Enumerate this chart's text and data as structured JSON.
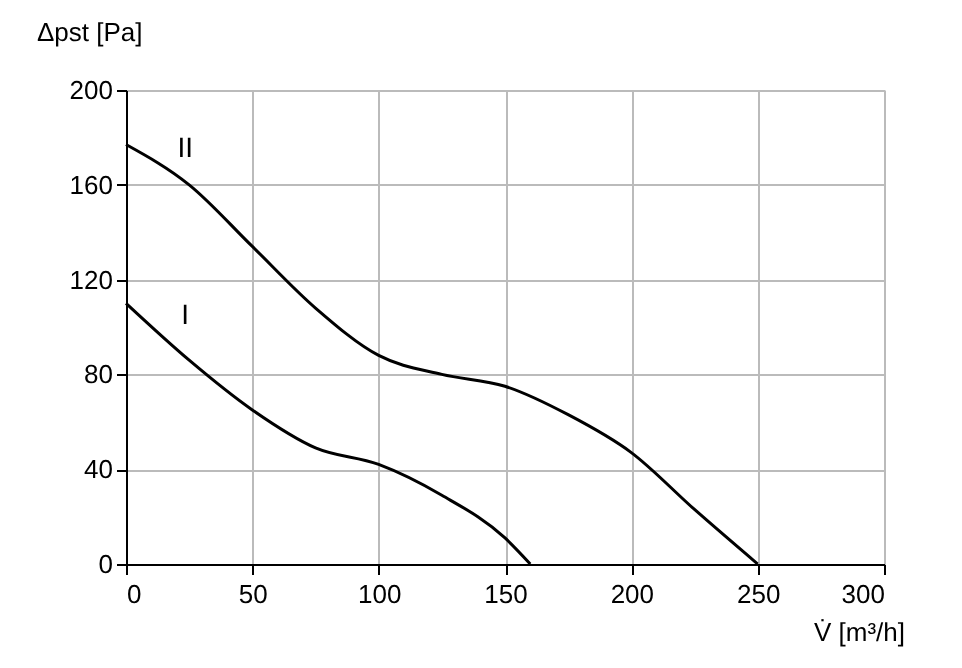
{
  "chart_data": {
    "type": "line",
    "xlabel": "V̇ [m³/h]",
    "ylabel": "Δpst [Pa]",
    "xlim": [
      0,
      300
    ],
    "xticks": [
      0,
      50,
      100,
      150,
      200,
      250,
      300
    ],
    "ylim": [
      0,
      200
    ],
    "yticks": [
      0,
      40,
      80,
      120,
      160,
      200
    ],
    "grid": true,
    "line_style": "solid",
    "marker": "none",
    "series": [
      {
        "name": "II",
        "color": "#000000",
        "x": [
          0,
          25,
          50,
          75,
          100,
          125,
          150,
          175,
          200,
          225,
          250
        ],
        "values": [
          177,
          160,
          134,
          108,
          88,
          80,
          75,
          63,
          47,
          23,
          0
        ]
      },
      {
        "name": "I",
        "color": "#000000",
        "x": [
          0,
          25,
          50,
          75,
          100,
          125,
          150,
          160
        ],
        "values": [
          110,
          86,
          65,
          49,
          42,
          29,
          11,
          0
        ]
      }
    ]
  }
}
